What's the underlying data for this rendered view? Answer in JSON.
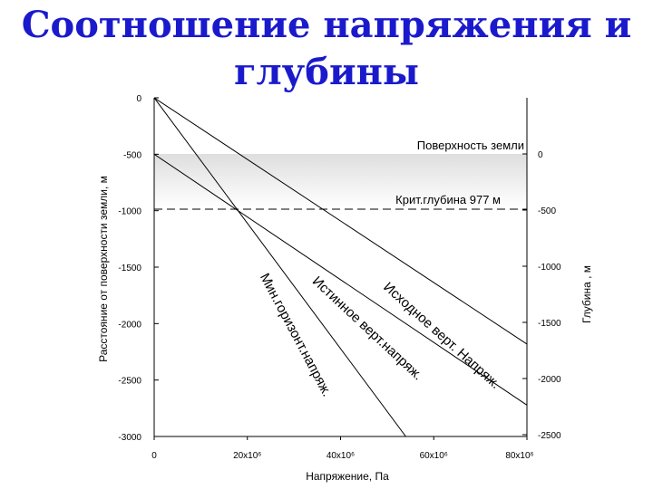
{
  "slide": {
    "title_line1": "Соотношение напряжения и",
    "title_line2": "глубины",
    "title_color": "#1a1acc"
  },
  "chart_data": {
    "type": "line",
    "xlabel": "Напряжение, Па",
    "ylabel": "Расстояние от поверхности земли, м",
    "y2label": "Глубина , м",
    "xlim": [
      0,
      80000000
    ],
    "ylim": [
      -3000,
      0
    ],
    "y2lim": [
      -2500,
      0
    ],
    "x_ticks": [
      "0",
      "20x10⁶",
      "40x10⁶",
      "60x10⁶",
      "80x10⁶"
    ],
    "y_ticks": [
      "0",
      "-500",
      "-1000",
      "-1500",
      "-2000",
      "-2500",
      "-3000"
    ],
    "y2_ticks": [
      "0",
      "-500",
      "-1000",
      "-1500",
      "-2000",
      "-2500"
    ],
    "grid": false,
    "series": [
      {
        "name": "Мин.горизонт.напряж.",
        "x": [
          0,
          54000000
        ],
        "y": [
          0,
          -3000
        ]
      },
      {
        "name": "Истинное верт.напряж.",
        "x": [
          0,
          90000000
        ],
        "y": [
          -500,
          -3000
        ]
      },
      {
        "name": "Исходное верт. Напряж.",
        "x": [
          0,
          110000000
        ],
        "y": [
          0,
          -3000
        ]
      }
    ],
    "annotations": {
      "surface_label": "Поверхность земли",
      "surface_depth": -500,
      "critical_label": "Крит.глубина 977 м",
      "critical_depth": -977
    }
  }
}
